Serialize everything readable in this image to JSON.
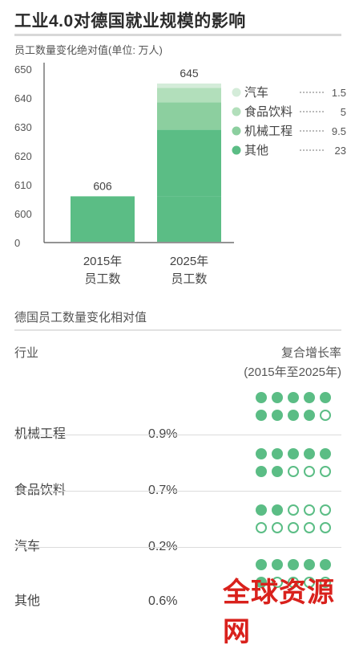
{
  "header": {
    "title": "工业4.0对德国就业规模的影响",
    "subtitle": "员工数量变化绝对值(单位: 万人)"
  },
  "chart_data": {
    "type": "bar",
    "stacked": true,
    "title": "工业4.0对德国就业规模的影响",
    "ylabel": "员工数量变化绝对值(单位: 万人)",
    "ylim": [
      600,
      650
    ],
    "y_axis_break": true,
    "y_ticks": [
      "0",
      "600",
      "610",
      "620",
      "630",
      "640",
      "650"
    ],
    "categories": [
      {
        "line1": "2015年",
        "line2": "员工数"
      },
      {
        "line1": "2025年",
        "line2": "员工数"
      }
    ],
    "totals": [
      "606",
      "645"
    ],
    "base": {
      "values": [
        606,
        606
      ]
    },
    "series": [
      {
        "name": "其他",
        "value": 23,
        "label": "23",
        "color": "#5bbd85"
      },
      {
        "name": "机械工程",
        "value": 9.5,
        "label": "9.5",
        "color": "#8ccf9f"
      },
      {
        "name": "食品饮料",
        "value": 5,
        "label": "5",
        "color": "#b2dfbb"
      },
      {
        "name": "汽车",
        "value": 1.5,
        "label": "1.5",
        "color": "#d4ecd9"
      }
    ],
    "grid": false,
    "legend_position": "right"
  },
  "table": {
    "section_title": "德国员工数量变化相对值",
    "col_industry": "行业",
    "col_rate_line1": "复合增长率",
    "col_rate_line2": "(2015年至2025年)",
    "rows": [
      {
        "name": "机械工程",
        "rate": "0.9%",
        "filled": 9
      },
      {
        "name": "食品饮料",
        "rate": "0.7%",
        "filled": 7
      },
      {
        "name": "汽车",
        "rate": "0.2%",
        "filled": 2
      },
      {
        "name": "其他",
        "rate": "0.6%",
        "filled": 6
      }
    ]
  },
  "watermark": "全球资源网",
  "colors": {
    "accent": "#5bbd85",
    "watermark": "#d9211c"
  }
}
